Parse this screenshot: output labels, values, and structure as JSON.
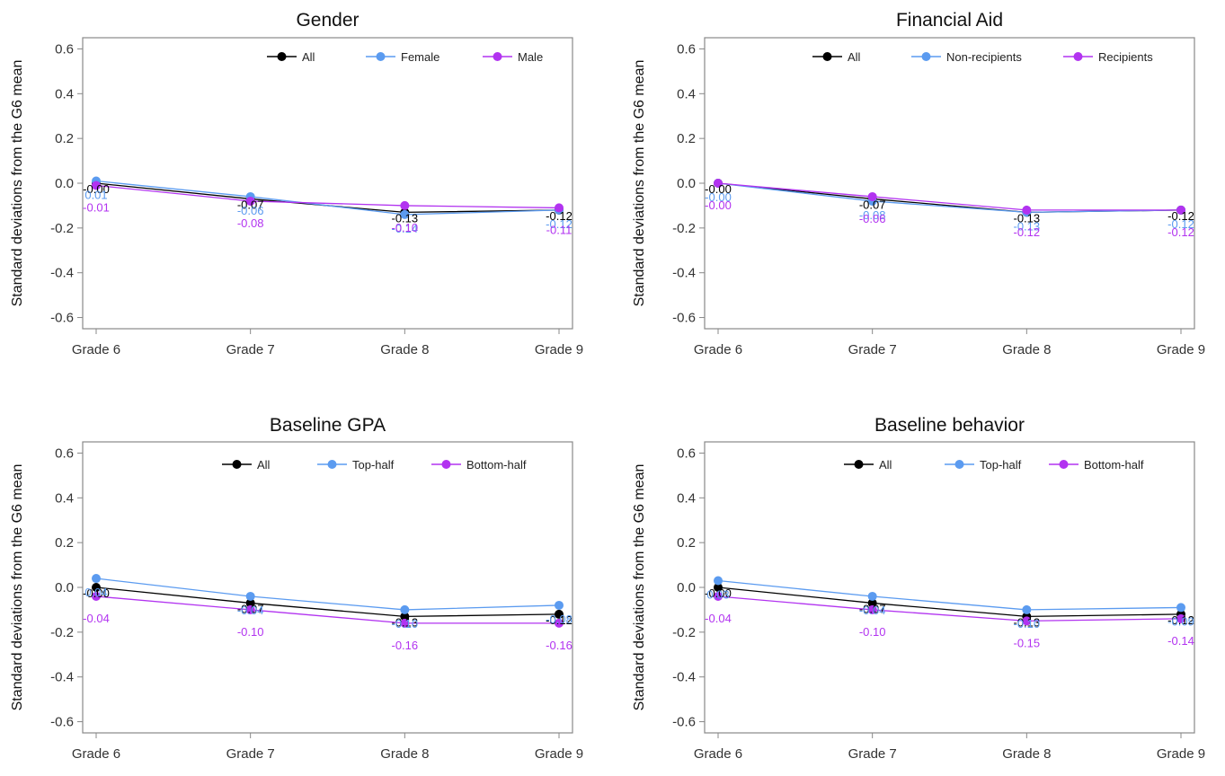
{
  "colors": {
    "All": "#000000",
    "s1": "#5b9bf0",
    "s2": "#b233f0",
    "axis": "#888888",
    "tick": "#333333"
  },
  "chart_data": [
    {
      "type": "line",
      "title": "Gender",
      "ylabel": "Standard deviations from the G6 mean",
      "categories": [
        "Grade 6",
        "Grade 7",
        "Grade 8",
        "Grade 9"
      ],
      "yticks": [
        "0.6",
        "0.4",
        "0.2",
        "0.0",
        "-0.2",
        "-0.4",
        "-0.6"
      ],
      "ylim": [
        -0.65,
        0.65
      ],
      "grid": false,
      "legend": "top-right",
      "series": [
        {
          "name": "All",
          "color": "#000000",
          "values": [
            0.0,
            -0.07,
            -0.13,
            -0.12
          ],
          "labels": [
            "-0.00",
            "-0.07",
            "-0.13",
            "-0.12"
          ]
        },
        {
          "name": "Female",
          "color": "#5b9bf0",
          "values": [
            0.01,
            -0.06,
            -0.14,
            -0.12
          ],
          "labels": [
            "0.01",
            "-0.06",
            "-0.14",
            "-0.12"
          ]
        },
        {
          "name": "Male",
          "color": "#b233f0",
          "values": [
            -0.01,
            -0.08,
            -0.1,
            -0.11
          ],
          "labels": [
            "-0.01",
            "-0.08",
            "-0.10",
            "-0.11"
          ]
        }
      ]
    },
    {
      "type": "line",
      "title": "Financial Aid",
      "ylabel": "Standard deviations from the G6 mean",
      "categories": [
        "Grade 6",
        "Grade 7",
        "Grade 8",
        "Grade 9"
      ],
      "yticks": [
        "0.6",
        "0.4",
        "0.2",
        "0.0",
        "-0.2",
        "-0.4",
        "-0.6"
      ],
      "ylim": [
        -0.65,
        0.65
      ],
      "grid": false,
      "legend": "top-right",
      "series": [
        {
          "name": "All",
          "color": "#000000",
          "values": [
            0.0,
            -0.07,
            -0.13,
            -0.12
          ],
          "labels": [
            "-0.00",
            "-0.07",
            "-0.13",
            "-0.12"
          ]
        },
        {
          "name": "Non-recipients",
          "color": "#5b9bf0",
          "values": [
            0.0,
            -0.08,
            -0.13,
            -0.12
          ],
          "labels": [
            "-0.00",
            "-0.08",
            "-0.13",
            "-0.12"
          ]
        },
        {
          "name": "Recipients",
          "color": "#b233f0",
          "values": [
            0.0,
            -0.06,
            -0.12,
            -0.12
          ],
          "labels": [
            "-0.00",
            "-0.06",
            "-0.12",
            "-0.12"
          ]
        }
      ]
    },
    {
      "type": "line",
      "title": "Baseline GPA",
      "ylabel": "Standard deviations from the G6 mean",
      "categories": [
        "Grade 6",
        "Grade 7",
        "Grade 8",
        "Grade 9"
      ],
      "yticks": [
        "0.6",
        "0.4",
        "0.2",
        "0.0",
        "-0.2",
        "-0.4",
        "-0.6"
      ],
      "ylim": [
        -0.65,
        0.65
      ],
      "grid": false,
      "legend": "top-right",
      "series": [
        {
          "name": "All",
          "color": "#000000",
          "values": [
            0.0,
            -0.07,
            -0.13,
            -0.12
          ],
          "labels": [
            "-0.00",
            "-0.07",
            "-0.13",
            "-0.12"
          ]
        },
        {
          "name": "Top-half",
          "color": "#5b9bf0",
          "values": [
            0.04,
            -0.04,
            -0.1,
            -0.08
          ],
          "labels": [
            "0.04",
            "-0.04",
            "-0.10",
            "-0.08"
          ]
        },
        {
          "name": "Bottom-half",
          "color": "#b233f0",
          "values": [
            -0.04,
            -0.1,
            -0.16,
            -0.16
          ],
          "labels": [
            "-0.04",
            "-0.10",
            "-0.16",
            "-0.16"
          ]
        }
      ]
    },
    {
      "type": "line",
      "title": "Baseline behavior",
      "ylabel": "Standard deviations from the G6 mean",
      "categories": [
        "Grade 6",
        "Grade 7",
        "Grade 8",
        "Grade 9"
      ],
      "yticks": [
        "0.6",
        "0.4",
        "0.2",
        "0.0",
        "-0.2",
        "-0.4",
        "-0.6"
      ],
      "ylim": [
        -0.65,
        0.65
      ],
      "grid": false,
      "legend": "top-right",
      "series": [
        {
          "name": "All",
          "color": "#000000",
          "values": [
            0.0,
            -0.07,
            -0.13,
            -0.12
          ],
          "labels": [
            "-0.00",
            "-0.07",
            "-0.13",
            "-0.12"
          ]
        },
        {
          "name": "Top-half",
          "color": "#5b9bf0",
          "values": [
            0.03,
            -0.04,
            -0.1,
            -0.09
          ],
          "labels": [
            "0.03",
            "-0.04",
            "-0.10",
            "-0.09"
          ]
        },
        {
          "name": "Bottom-half",
          "color": "#b233f0",
          "values": [
            -0.04,
            -0.1,
            -0.15,
            -0.14
          ],
          "labels": [
            "-0.04",
            "-0.10",
            "-0.15",
            "-0.14"
          ]
        }
      ]
    }
  ]
}
